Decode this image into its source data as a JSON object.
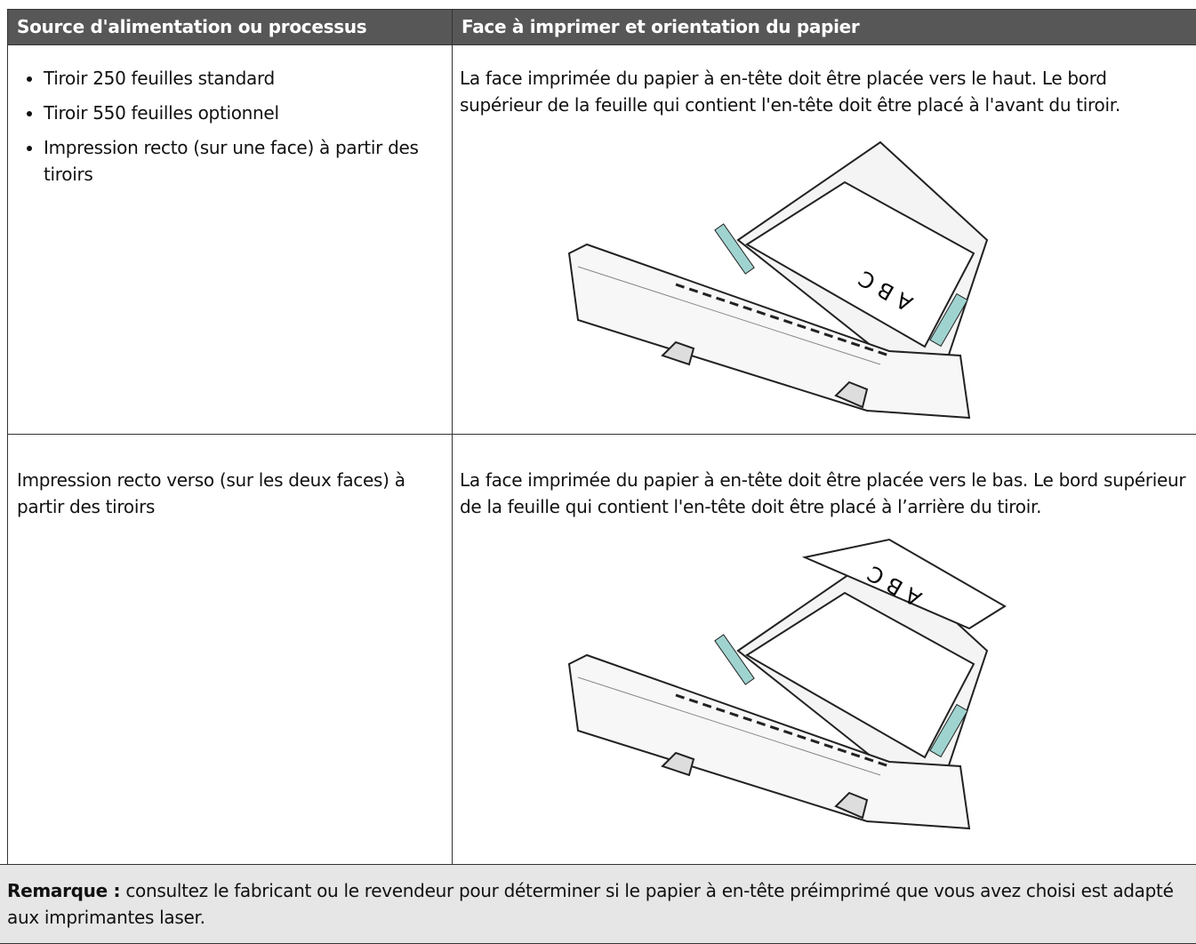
{
  "table": {
    "header": [
      "Source d'alimentation ou processus",
      "Face à imprimer et orientation du papier"
    ],
    "rows": [
      {
        "source": [
          "Tiroir 250 feuilles standard",
          "Tiroir 550 feuilles optionnel",
          "Impression recto (sur une face) à partir des tiroirs"
        ],
        "orientation": "La face imprimée du papier à en-tête doit être placée vers le haut. Le bord supérieur de la feuille qui contient l'en-tête doit être placé à l'avant du tiroir.",
        "image_text": "A B C"
      },
      {
        "source": [
          "Impression recto verso (sur les deux faces) à partir des tiroirs"
        ],
        "orientation": "La face imprimée du papier à en-tête doit être placée vers le bas. Le bord supérieur de la feuille qui contient l'en-tête doit être placé à l’arrière du tiroir.",
        "image_text": "A B C"
      }
    ],
    "note": {
      "label": "Remarque :",
      "text": "consultez le fabricant ou le revendeur pour déterminer si le papier à en-tête préimprimé que vous avez choisi est adapté aux imprimantes laser."
    }
  }
}
